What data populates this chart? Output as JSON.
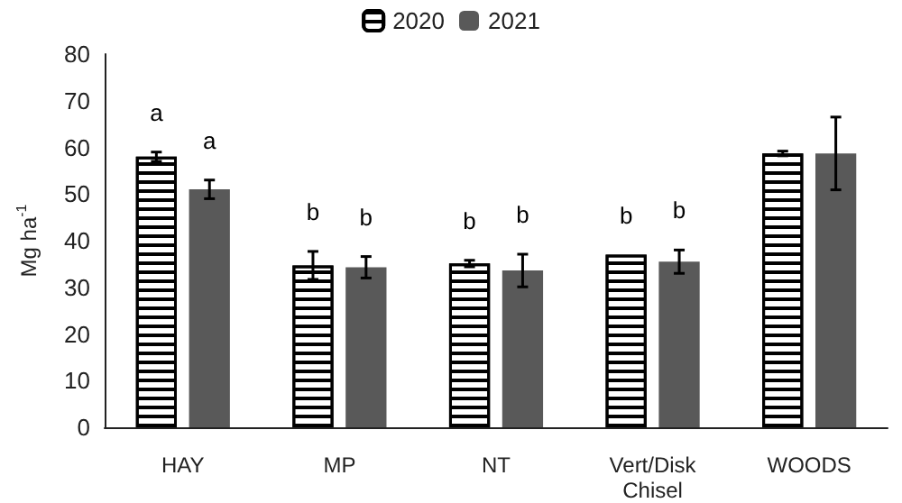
{
  "chart_data": {
    "type": "bar",
    "ylabel": "Mg ha$^{-1}$",
    "categories": [
      "HAY",
      "MP",
      "NT",
      "Vert/Disk\nChisel",
      "WOODS"
    ],
    "series": [
      {
        "name": "2020",
        "color": "#ffffff",
        "values": [
          58,
          34.7,
          35.1,
          37,
          58.7
        ],
        "errors": [
          1,
          3,
          0.7,
          null,
          0.5
        ]
      },
      {
        "name": "2021",
        "color": "#595959",
        "values": [
          51,
          34.3,
          33.6,
          35.5,
          58.7
        ],
        "errors": [
          2,
          2.3,
          3.5,
          2.5,
          7.8
        ]
      }
    ],
    "annotations": [
      "a",
      "a",
      "b",
      "b",
      "b",
      "b",
      "b",
      "b"
    ],
    "ylim": [
      0,
      80
    ],
    "yticks": [
      0,
      10,
      20,
      30,
      40,
      50,
      60,
      70,
      80
    ],
    "grid": false,
    "legend": "top"
  }
}
